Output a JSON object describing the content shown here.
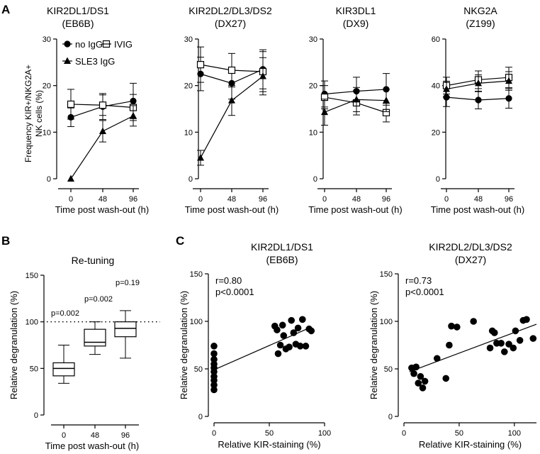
{
  "chart_data": [
    {
      "panel": "A",
      "type": "line",
      "title": [
        "KIR2DL1/DS1",
        "(EB6B)"
      ],
      "xlabel": "Time post wash-out (h)",
      "ylabel": [
        "Frequency KIR+/NKG2A+",
        "NK cells (%)"
      ],
      "categories": [
        "0",
        "48",
        "96"
      ],
      "ylim": [
        0,
        30
      ],
      "yticks": [
        0,
        10,
        20,
        30
      ],
      "legend": [
        "no IgG",
        "IVIG",
        "SLE3 IgG"
      ],
      "series": [
        {
          "name": "no IgG",
          "marker": "circle",
          "values": [
            13.2,
            15.5,
            16.7
          ],
          "errors": [
            2.0,
            2.8,
            3.8
          ]
        },
        {
          "name": "IVIG",
          "marker": "square",
          "values": [
            16.0,
            15.8,
            15.3
          ],
          "errors": [
            3.2,
            2.2,
            2.8
          ]
        },
        {
          "name": "SLE3 IgG",
          "marker": "triangle",
          "values": [
            0.0,
            10.2,
            13.5
          ],
          "errors": [
            0,
            2.3,
            2.2
          ]
        }
      ]
    },
    {
      "panel": "A",
      "type": "line",
      "title": [
        "KIR2DL2/DL3/DS2",
        "(DX27)"
      ],
      "xlabel": "Time post wash-out (h)",
      "categories": [
        "0",
        "48",
        "96"
      ],
      "ylim": [
        0,
        30
      ],
      "yticks": [
        0,
        10,
        20,
        30
      ],
      "series": [
        {
          "name": "no IgG",
          "marker": "circle",
          "values": [
            22.5,
            20.5,
            23.5
          ],
          "errors": [
            3.6,
            3.4,
            4.2
          ]
        },
        {
          "name": "IVIG",
          "marker": "square",
          "values": [
            24.5,
            23.3,
            23.0
          ],
          "errors": [
            3.8,
            3.6,
            4.3
          ]
        },
        {
          "name": "SLE3 IgG",
          "marker": "triangle",
          "values": [
            4.5,
            16.8,
            22.0
          ],
          "errors": [
            1.6,
            3.2,
            4.0
          ]
        }
      ]
    },
    {
      "panel": "A",
      "type": "line",
      "title": [
        "KIR3DL1",
        "(DX9)"
      ],
      "xlabel": "Time post wash-out (h)",
      "categories": [
        "0",
        "48",
        "96"
      ],
      "ylim": [
        0,
        30
      ],
      "yticks": [
        0,
        10,
        20,
        30
      ],
      "series": [
        {
          "name": "no IgG",
          "marker": "circle",
          "values": [
            18.2,
            18.8,
            19.2
          ],
          "errors": [
            2.8,
            3.0,
            3.4
          ]
        },
        {
          "name": "IVIG",
          "marker": "square",
          "values": [
            17.5,
            16.3,
            14.2
          ],
          "errors": [
            2.5,
            2.6,
            2.0
          ]
        },
        {
          "name": "SLE3 IgG",
          "marker": "triangle",
          "values": [
            14.3,
            17.0,
            16.8
          ],
          "errors": [
            2.8,
            2.6,
            2.4
          ]
        }
      ]
    },
    {
      "panel": "A",
      "type": "line",
      "title": [
        "NKG2A",
        "(Z199)"
      ],
      "xlabel": "Time post wash-out (h)",
      "categories": [
        "0",
        "48",
        "96"
      ],
      "ylim": [
        0,
        60
      ],
      "yticks": [
        0,
        20,
        40,
        60
      ],
      "series": [
        {
          "name": "no IgG",
          "marker": "circle",
          "values": [
            35.0,
            33.8,
            34.5
          ],
          "errors": [
            4.0,
            3.8,
            4.2
          ]
        },
        {
          "name": "IVIG",
          "marker": "square",
          "values": [
            40.0,
            42.5,
            43.5
          ],
          "errors": [
            3.6,
            3.8,
            4.4
          ]
        },
        {
          "name": "SLE3 IgG",
          "marker": "triangle",
          "values": [
            38.5,
            41.0,
            42.0
          ],
          "errors": [
            3.4,
            3.6,
            4.0
          ]
        }
      ]
    },
    {
      "panel": "B",
      "type": "box",
      "title": "Re-tuning",
      "xlabel": "Time post wash-out (h)",
      "ylabel": "Relative degranulation (%)",
      "categories": [
        "0",
        "48",
        "96"
      ],
      "ylim": [
        0,
        150
      ],
      "yticks": [
        0,
        50,
        100,
        150
      ],
      "reference_line": 100,
      "boxes": [
        {
          "category": "0",
          "min": 34,
          "q1": 42,
          "median": 50,
          "q3": 56,
          "max": 75,
          "label": "p=0.002"
        },
        {
          "category": "48",
          "min": 65,
          "q1": 74,
          "median": 78,
          "q3": 92,
          "max": 100,
          "label": "p=0.002"
        },
        {
          "category": "96",
          "min": 61,
          "q1": 84,
          "median": 93,
          "q3": 100,
          "max": 112,
          "label": "p=0.19"
        }
      ]
    },
    {
      "panel": "C",
      "type": "scatter",
      "title": [
        "KIR2DL1/DS1",
        "(EB6B)"
      ],
      "xlabel": "Relative KIR-staining (%)",
      "ylabel": "Relative degranulation (%)",
      "xlim": [
        0,
        100
      ],
      "ylim": [
        0,
        150
      ],
      "xticks": [
        0,
        50,
        100
      ],
      "yticks": [
        0,
        50,
        100,
        150
      ],
      "annotation": [
        "r=0.80",
        "p<0.0001"
      ],
      "fit": {
        "x": [
          0,
          88
        ],
        "y": [
          49,
          94
        ]
      },
      "x": [
        0,
        0,
        0,
        0,
        0,
        0,
        0,
        0,
        0,
        0,
        55,
        57,
        58,
        60,
        62,
        63,
        65,
        68,
        70,
        72,
        74,
        76,
        78,
        80,
        83,
        86,
        88
      ],
      "y": [
        28,
        33,
        38,
        42,
        47,
        51,
        55,
        60,
        66,
        74,
        95,
        91,
        66,
        75,
        96,
        85,
        71,
        73,
        101,
        88,
        76,
        93,
        74,
        102,
        74,
        92,
        90
      ]
    },
    {
      "panel": "C",
      "type": "scatter",
      "title": [
        "KIR2DL2/DL3/DS2",
        "(DX27)"
      ],
      "xlabel": "Relative KIR-staining (%)",
      "ylabel": "Relative degranulation (%)",
      "xlim": [
        0,
        120
      ],
      "ylim": [
        0,
        150
      ],
      "xticks": [
        0,
        50,
        100
      ],
      "yticks": [
        0,
        50,
        100,
        150
      ],
      "annotation": [
        "r=0.73",
        "p<0.0001"
      ],
      "fit": {
        "x": [
          5,
          120
        ],
        "y": [
          47,
          97
        ]
      },
      "x": [
        7,
        9,
        11,
        13,
        15,
        17,
        19,
        30,
        38,
        41,
        43,
        48,
        63,
        78,
        80,
        82,
        84,
        88,
        91,
        95,
        99,
        101,
        105,
        108,
        111,
        117
      ],
      "y": [
        51,
        45,
        52,
        35,
        42,
        30,
        37,
        61,
        40,
        75,
        95,
        94,
        100,
        72,
        90,
        88,
        77,
        77,
        68,
        76,
        72,
        90,
        80,
        101,
        102,
        82
      ]
    }
  ]
}
